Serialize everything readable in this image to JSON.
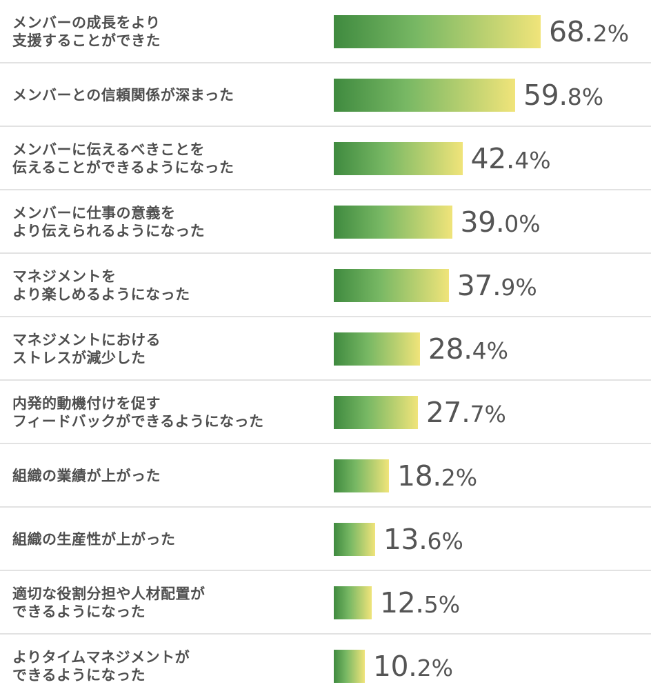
{
  "chart_data": {
    "type": "bar",
    "orientation": "horizontal",
    "categories": [
      "メンバーの成長をより\n支援することができた",
      "メンバーとの信頼関係が深まった",
      "メンバーに伝えるべきことを\n伝えることができるようになった",
      "メンバーに仕事の意義を\nより伝えられるようになった",
      "マネジメントを\nより楽しめるようになった",
      "マネジメントにおける\nストレスが減少した",
      "内発的動機付けを促す\nフィードバックができるようになった",
      "組織の業績が上がった",
      "組織の生産性が上がった",
      "適切な役割分担や人材配置が\nできるようになった",
      "よりタイムマネジメントが\nできるようになった"
    ],
    "values": [
      68.2,
      59.8,
      42.4,
      39.0,
      37.9,
      28.4,
      27.7,
      18.2,
      13.6,
      12.5,
      10.2
    ],
    "value_labels": [
      {
        "int": "68.",
        "dec": "2%"
      },
      {
        "int": "59.",
        "dec": "8%"
      },
      {
        "int": "42.",
        "dec": "4%"
      },
      {
        "int": "39.",
        "dec": "0%"
      },
      {
        "int": "37.",
        "dec": "9%"
      },
      {
        "int": "28.",
        "dec": "4%"
      },
      {
        "int": "27.",
        "dec": "7%"
      },
      {
        "int": "18.",
        "dec": "2%"
      },
      {
        "int": "13.",
        "dec": "6%"
      },
      {
        "int": "12.",
        "dec": "5%"
      },
      {
        "int": "10.",
        "dec": "2%"
      }
    ],
    "unit": "%",
    "grid": false,
    "legend": "none",
    "colors": {
      "bar_gradient_start": "#3f8a3f",
      "bar_gradient_mid": "#78b864",
      "bar_gradient_end": "#f0e47a",
      "label_text": "#4f4f4f",
      "value_text": "#555555",
      "divider": "#e2e2e2"
    }
  }
}
